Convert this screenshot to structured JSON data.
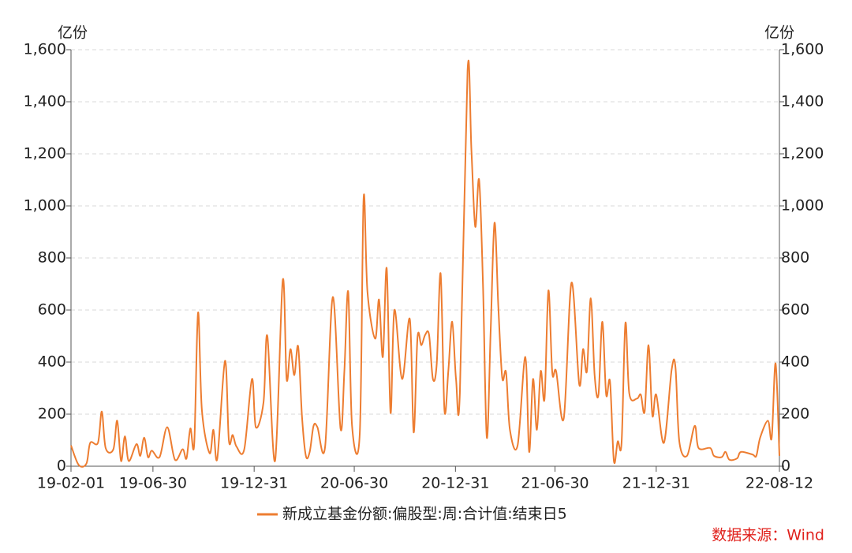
{
  "chart_data": {
    "type": "line",
    "y_label": "亿份",
    "y2_label": "亿份",
    "source": "数据来源：Wind",
    "ylim": [
      0,
      1600
    ],
    "yticks": [
      {
        "value": 0,
        "label": "0"
      },
      200,
      400,
      600,
      800,
      {
        "value": 1000,
        "label": "1,000"
      },
      {
        "value": 1200,
        "label": "1,200"
      },
      {
        "value": 1400,
        "label": "1,400"
      },
      {
        "value": 1600,
        "label": "1,600"
      }
    ],
    "y2lim": [
      0,
      1600
    ],
    "y2ticks": [
      {
        "value": 0,
        "label": "0"
      },
      200,
      400,
      600,
      800,
      {
        "value": 1000,
        "label": "1,000"
      },
      {
        "value": 1200,
        "label": "1,200"
      },
      {
        "value": 1400,
        "label": "1,400"
      },
      {
        "value": 1600,
        "label": "1,600"
      }
    ],
    "xlim": [
      "19-02-01",
      "22-08-12"
    ],
    "xticks": [
      "19-02-01",
      "19-06-30",
      "19-12-31",
      "20-06-30",
      "20-12-31",
      "21-06-30",
      "21-12-31",
      "22-08-12"
    ],
    "grid": true,
    "legend": "bottom",
    "x": [
      "19-02-01",
      "19-02-15",
      "19-03-01",
      "19-03-08",
      "19-03-22",
      "19-03-29",
      "19-04-05",
      "19-04-19",
      "19-04-26",
      "19-05-03",
      "19-05-10",
      "19-05-17",
      "19-05-31",
      "19-06-07",
      "19-06-14",
      "19-06-21",
      "19-06-28",
      "19-07-12",
      "19-07-26",
      "19-08-09",
      "19-08-23",
      "19-08-30",
      "19-09-06",
      "19-09-13",
      "19-09-20",
      "19-09-27",
      "19-10-11",
      "19-10-18",
      "19-10-25",
      "19-11-08",
      "19-11-15",
      "19-11-22",
      "19-11-29",
      "19-12-13",
      "19-12-27",
      "20-01-03",
      "20-01-17",
      "20-01-24",
      "20-02-07",
      "20-02-21",
      "20-02-28",
      "20-03-06",
      "20-03-13",
      "20-03-20",
      "20-03-27",
      "20-04-03",
      "20-04-10",
      "20-04-17",
      "20-04-24",
      "20-05-08",
      "20-05-22",
      "20-06-05",
      "20-06-12",
      "20-06-19",
      "20-06-26",
      "20-07-10",
      "20-07-17",
      "20-07-24",
      "20-08-07",
      "20-08-14",
      "20-08-21",
      "20-08-28",
      "20-09-04",
      "20-09-11",
      "20-09-25",
      "20-10-09",
      "20-10-16",
      "20-10-23",
      "20-10-30",
      "20-11-06",
      "20-11-13",
      "20-11-20",
      "20-11-27",
      "20-12-04",
      "20-12-11",
      "20-12-18",
      "20-12-25",
      "21-01-01",
      "21-01-08",
      "21-01-22",
      "21-01-29",
      "21-02-05",
      "21-02-12",
      "21-02-19",
      "21-02-26",
      "21-03-05",
      "21-03-12",
      "21-03-19",
      "21-03-26",
      "21-04-02",
      "21-04-09",
      "21-04-23",
      "21-05-07",
      "21-05-14",
      "21-05-21",
      "21-05-28",
      "21-06-04",
      "21-06-11",
      "21-06-18",
      "21-06-25",
      "21-07-02",
      "21-07-16",
      "21-07-30",
      "21-08-13",
      "21-08-20",
      "21-08-27",
      "21-09-03",
      "21-09-10",
      "21-09-17",
      "21-09-24",
      "21-10-01",
      "21-10-08",
      "21-10-15",
      "21-10-22",
      "21-10-29",
      "21-11-05",
      "21-11-12",
      "21-11-26",
      "21-12-03",
      "21-12-10",
      "21-12-17",
      "21-12-24",
      "21-12-31",
      "22-01-14",
      "22-01-28",
      "22-02-04",
      "22-02-11",
      "22-02-25",
      "22-03-11",
      "22-03-18",
      "22-04-08",
      "22-04-15",
      "22-04-29",
      "22-05-06",
      "22-05-13",
      "22-05-27",
      "22-06-03",
      "22-06-24",
      "22-07-01",
      "22-07-08",
      "22-07-22",
      "22-07-29",
      "22-08-05",
      "22-08-12"
    ],
    "series": [
      {
        "name": "新成立基金份额:偏股型:周:合计值:结束日5",
        "color": "#ED7D31",
        "values": [
          80,
          5,
          10,
          90,
          90,
          210,
          70,
          65,
          175,
          20,
          115,
          20,
          85,
          40,
          110,
          35,
          60,
          35,
          150,
          25,
          65,
          30,
          145,
          85,
          590,
          215,
          50,
          140,
          30,
          405,
          100,
          120,
          75,
          65,
          335,
          150,
          245,
          500,
          20,
          715,
          335,
          450,
          350,
          460,
          190,
          40,
          55,
          155,
          150,
          75,
          650,
          145,
          365,
          670,
          155,
          125,
          1030,
          670,
          490,
          640,
          420,
          760,
          205,
          600,
          335,
          565,
          130,
          495,
          465,
          505,
          505,
          335,
          395,
          740,
          215,
          365,
          555,
          335,
          280,
          1520,
          1215,
          920,
          1100,
          700,
          110,
          520,
          935,
          610,
          340,
          360,
          140,
          80,
          420,
          55,
          335,
          140,
          365,
          260,
          675,
          360,
          365,
          185,
          705,
          315,
          450,
          365,
          645,
          350,
          275,
          555,
          275,
          325,
          20,
          95,
          90,
          550,
          280,
          260,
          275,
          210,
          465,
          195,
          275,
          90,
          370,
          380,
          95,
          40,
          155,
          70,
          70,
          40,
          35,
          55,
          25,
          30,
          55,
          45,
          40,
          110,
          175,
          110,
          395,
          40
        ]
      }
    ]
  }
}
